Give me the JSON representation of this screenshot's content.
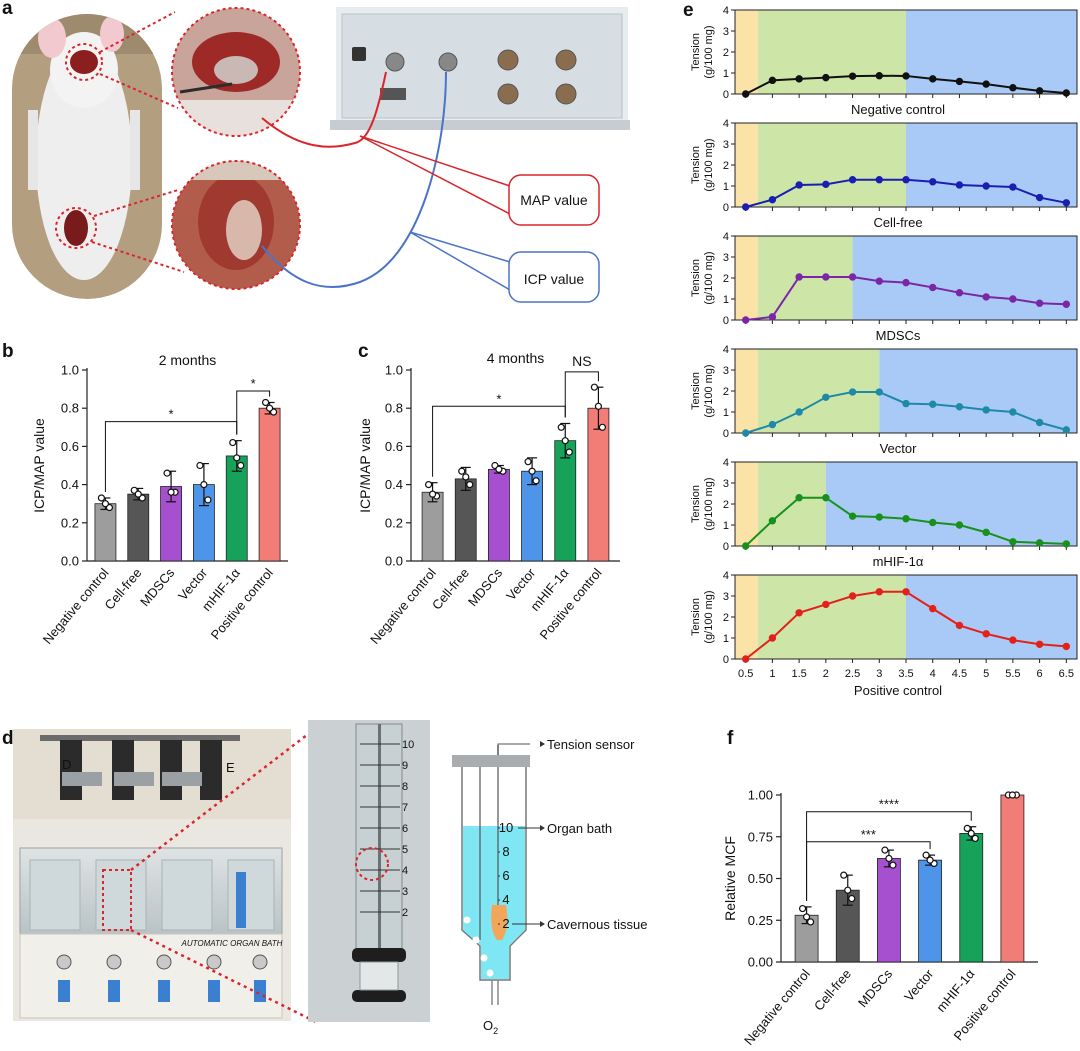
{
  "panels": {
    "a": {
      "letter": "a",
      "labels": {
        "map": "MAP value",
        "icp": "ICP value"
      }
    },
    "d": {
      "letter": "d",
      "photo_labels": {
        "left": "D",
        "right": "E",
        "bath_text": "AUTOMATIC ORGAN BATH"
      },
      "diagram": {
        "tension_sensor": "Tension sensor",
        "organ_bath": "Organ bath",
        "cavernous_tissue": "Cavernous tissue",
        "o2": "O",
        "o2_sub": "2",
        "scale": [
          "10",
          "8",
          "6",
          "4",
          "2"
        ]
      },
      "ruler_numbers": [
        "10",
        "9",
        "8",
        "7",
        "6",
        "5",
        "4",
        "3",
        "2"
      ]
    }
  },
  "colors": {
    "negative_control": "#9d9d9d",
    "cell_free": "#565656",
    "mdscs": "#a64fcf",
    "vector": "#4e95e9",
    "mhif": "#17a25a",
    "positive_control": "#f27c76",
    "e_negative": "#111111",
    "e_cellfree": "#1b1fb0",
    "e_mdscs": "#7b26a6",
    "e_vector": "#1f8aa8",
    "e_mhif": "#19901d",
    "e_positive": "#e3211b",
    "bg_orange": "#fbe3a7",
    "bg_green": "#cde6a8",
    "bg_blue": "#a9caf6",
    "map_red": "#d9262b",
    "icp_blue": "#4b73c9"
  },
  "chart_data": [
    {
      "panel": "b",
      "letter": "b",
      "type": "bar",
      "title": "2 months",
      "ylabel": "ICP/MAP value",
      "ylim": [
        0,
        1.0
      ],
      "yticks": [
        "0.0",
        "0.2",
        "0.4",
        "0.6",
        "0.8",
        "1.0"
      ],
      "categories": [
        "Negative control",
        "Cell-free",
        "MDSCs",
        "Vector",
        "mHIF-1α",
        "Positive control"
      ],
      "values": [
        0.3,
        0.35,
        0.39,
        0.4,
        0.55,
        0.8
      ],
      "errors": [
        0.03,
        0.03,
        0.08,
        0.11,
        0.08,
        0.03
      ],
      "points": [
        [
          0.33,
          0.28,
          0.3
        ],
        [
          0.37,
          0.33,
          0.35
        ],
        [
          0.46,
          0.36,
          0.36
        ],
        [
          0.5,
          0.32,
          0.4
        ],
        [
          0.62,
          0.5,
          0.54
        ],
        [
          0.83,
          0.78,
          0.8
        ]
      ],
      "significance": [
        {
          "from": 0,
          "to": 4,
          "y": 0.73,
          "label": "*"
        },
        {
          "from": 4,
          "to": 5,
          "y": 0.89,
          "label": "*"
        }
      ]
    },
    {
      "panel": "c",
      "letter": "c",
      "type": "bar",
      "title": "4 months",
      "ylabel": "ICP/MAP value",
      "ylim": [
        0,
        1.0
      ],
      "yticks": [
        "0.0",
        "0.2",
        "0.4",
        "0.6",
        "0.8",
        "1.0"
      ],
      "categories": [
        "Negative control",
        "Cell-free",
        "MDSCs",
        "Vector",
        "mHIF-1α",
        "Positive control"
      ],
      "values": [
        0.36,
        0.43,
        0.48,
        0.47,
        0.63,
        0.8
      ],
      "errors": [
        0.05,
        0.06,
        0.02,
        0.07,
        0.09,
        0.11
      ],
      "points": [
        [
          0.4,
          0.34,
          0.35
        ],
        [
          0.47,
          0.4,
          0.44
        ],
        [
          0.5,
          0.47,
          0.48
        ],
        [
          0.52,
          0.42,
          0.47
        ],
        [
          0.7,
          0.57,
          0.63
        ],
        [
          0.91,
          0.7,
          0.81
        ]
      ],
      "significance": [
        {
          "from": 0,
          "to": 4,
          "y": 0.81,
          "label": "*"
        },
        {
          "from": 4,
          "to": 5,
          "y": 0.99,
          "label": "NS"
        }
      ]
    },
    {
      "panel": "e",
      "letter": "e",
      "type": "line",
      "ylabel": "Tension",
      "ylabel2": "(g/100 mg)",
      "xlabel": "Positive control",
      "xlim": [
        0.3,
        6.7
      ],
      "ylim": [
        0,
        4
      ],
      "yticks": [
        "0",
        "1",
        "2",
        "3",
        "4"
      ],
      "xticks": [
        "0.5",
        "1",
        "1.5",
        "2",
        "2.5",
        "3",
        "3.5",
        "4",
        "4.5",
        "5",
        "5.5",
        "6",
        "6.5"
      ],
      "series": [
        {
          "name": "Negative control",
          "color_key": "e_negative",
          "green_end": 3.5,
          "x": [
            0.5,
            1,
            1.5,
            2,
            2.5,
            3,
            3.5,
            4,
            4.5,
            5,
            5.5,
            6,
            6.5
          ],
          "y": [
            0,
            0.65,
            0.72,
            0.78,
            0.85,
            0.87,
            0.86,
            0.72,
            0.6,
            0.47,
            0.3,
            0.15,
            0.05
          ]
        },
        {
          "name": "Cell-free",
          "color_key": "e_cellfree",
          "green_end": 3.5,
          "x": [
            0.5,
            1,
            1.5,
            2,
            2.5,
            3,
            3.5,
            4,
            4.5,
            5,
            5.5,
            6,
            6.5
          ],
          "y": [
            0,
            0.35,
            1.05,
            1.08,
            1.3,
            1.3,
            1.3,
            1.2,
            1.05,
            1.0,
            0.95,
            0.45,
            0.2
          ]
        },
        {
          "name": "MDSCs",
          "color_key": "e_mdscs",
          "green_end": 2.5,
          "x": [
            0.5,
            1,
            1.5,
            2,
            2.5,
            3,
            3.5,
            4,
            4.5,
            5,
            5.5,
            6,
            6.5
          ],
          "y": [
            0,
            0.15,
            2.05,
            2.05,
            2.05,
            1.85,
            1.78,
            1.55,
            1.3,
            1.1,
            1.0,
            0.8,
            0.75
          ]
        },
        {
          "name": "Vector",
          "color_key": "e_vector",
          "green_end": 3.0,
          "x": [
            0.5,
            1,
            1.5,
            2,
            2.5,
            3,
            3.5,
            4,
            4.5,
            5,
            5.5,
            6,
            6.5
          ],
          "y": [
            0,
            0.4,
            1.0,
            1.7,
            1.95,
            1.95,
            1.4,
            1.37,
            1.25,
            1.1,
            1.0,
            0.5,
            0.15
          ]
        },
        {
          "name": "mHIF-1α",
          "color_key": "e_mhif",
          "green_end": 2.0,
          "x": [
            0.5,
            1,
            1.5,
            2,
            2.5,
            3,
            3.5,
            4,
            4.5,
            5,
            5.5,
            6,
            6.5
          ],
          "y": [
            0,
            1.2,
            2.3,
            2.3,
            1.42,
            1.38,
            1.3,
            1.12,
            1.0,
            0.65,
            0.2,
            0.15,
            0.1
          ]
        },
        {
          "name": "Positive control",
          "color_key": "e_positive",
          "green_end": 3.5,
          "x": [
            0.5,
            1,
            1.5,
            2,
            2.5,
            3,
            3.5,
            4,
            4.5,
            5,
            5.5,
            6,
            6.5
          ],
          "y": [
            0,
            1.0,
            2.2,
            2.6,
            3.0,
            3.2,
            3.2,
            2.4,
            1.6,
            1.2,
            0.9,
            0.7,
            0.6
          ]
        }
      ]
    },
    {
      "panel": "f",
      "letter": "f",
      "type": "bar",
      "ylabel": "Relative MCF",
      "ylim": [
        0,
        1.0
      ],
      "yticks": [
        "0.00",
        "0.25",
        "0.50",
        "0.75",
        "1.00"
      ],
      "categories": [
        "Negative control",
        "Cell-free",
        "MDSCs",
        "Vector",
        "mHIF-1α",
        "Positive control"
      ],
      "values": [
        0.28,
        0.43,
        0.62,
        0.61,
        0.77,
        1.0
      ],
      "errors": [
        0.05,
        0.09,
        0.05,
        0.03,
        0.04,
        0.0
      ],
      "points": [
        [
          0.32,
          0.24,
          0.27
        ],
        [
          0.52,
          0.38,
          0.43
        ],
        [
          0.67,
          0.58,
          0.62
        ],
        [
          0.64,
          0.59,
          0.61
        ],
        [
          0.8,
          0.74,
          0.77
        ],
        [
          1.0,
          1.0,
          1.0
        ]
      ],
      "significance": [
        {
          "from": 0,
          "to": 4,
          "y": 0.9,
          "label": "****"
        },
        {
          "from": 0,
          "to": 3,
          "y": 0.72,
          "label": "***"
        }
      ]
    }
  ]
}
